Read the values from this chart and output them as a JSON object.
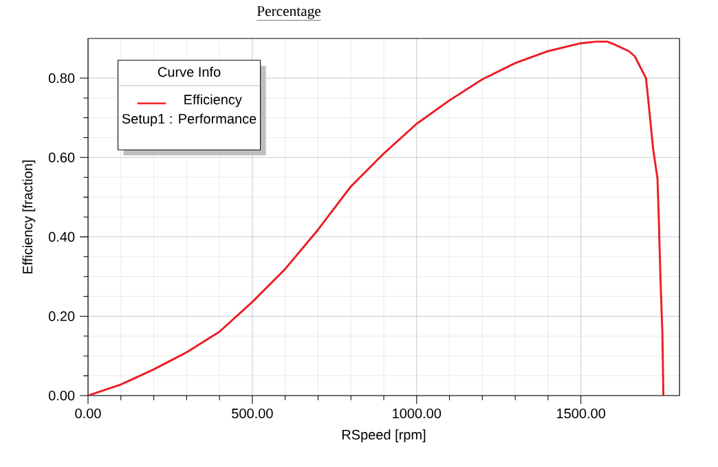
{
  "chart_data": {
    "type": "line",
    "title": "Percentage",
    "xlabel": "RSpeed [rpm]",
    "ylabel": "Efficiency [fraction]",
    "legend_title": "Curve Info",
    "annotations": [
      "Setup1 : Performance"
    ],
    "x": [
      0,
      100,
      200,
      300,
      400,
      500,
      600,
      700,
      800,
      900,
      1000,
      1100,
      1200,
      1300,
      1400,
      1500,
      1548,
      1580,
      1599,
      1646,
      1664,
      1698,
      1705,
      1720,
      1733,
      1737,
      1742,
      1748,
      1751
    ],
    "series": [
      {
        "name": "Efficiency",
        "color": "#ed1c24",
        "values": [
          0,
          0.028,
          0.066,
          0.109,
          0.161,
          0.236,
          0.319,
          0.418,
          0.527,
          0.61,
          0.685,
          0.744,
          0.797,
          0.838,
          0.868,
          0.888,
          0.892,
          0.892,
          0.886,
          0.868,
          0.855,
          0.8,
          0.745,
          0.62,
          0.547,
          0.447,
          0.298,
          0.156,
          0
        ]
      }
    ],
    "xlim": [
      0,
      1800
    ],
    "ylim": [
      0,
      0.9
    ],
    "xticks": [
      {
        "value": 0,
        "label": "0.00"
      },
      {
        "value": 500,
        "label": "500.00"
      },
      {
        "value": 1000,
        "label": "1000.00"
      },
      {
        "value": 1500,
        "label": "1500.00"
      }
    ],
    "yticks": [
      {
        "value": 0,
        "label": "0.00"
      },
      {
        "value": 0.2,
        "label": "0.20"
      },
      {
        "value": 0.4,
        "label": "0.40"
      },
      {
        "value": 0.6,
        "label": "0.60"
      },
      {
        "value": 0.8,
        "label": "0.80"
      }
    ],
    "grid": true,
    "legend": "top left",
    "line_style": "solid"
  }
}
